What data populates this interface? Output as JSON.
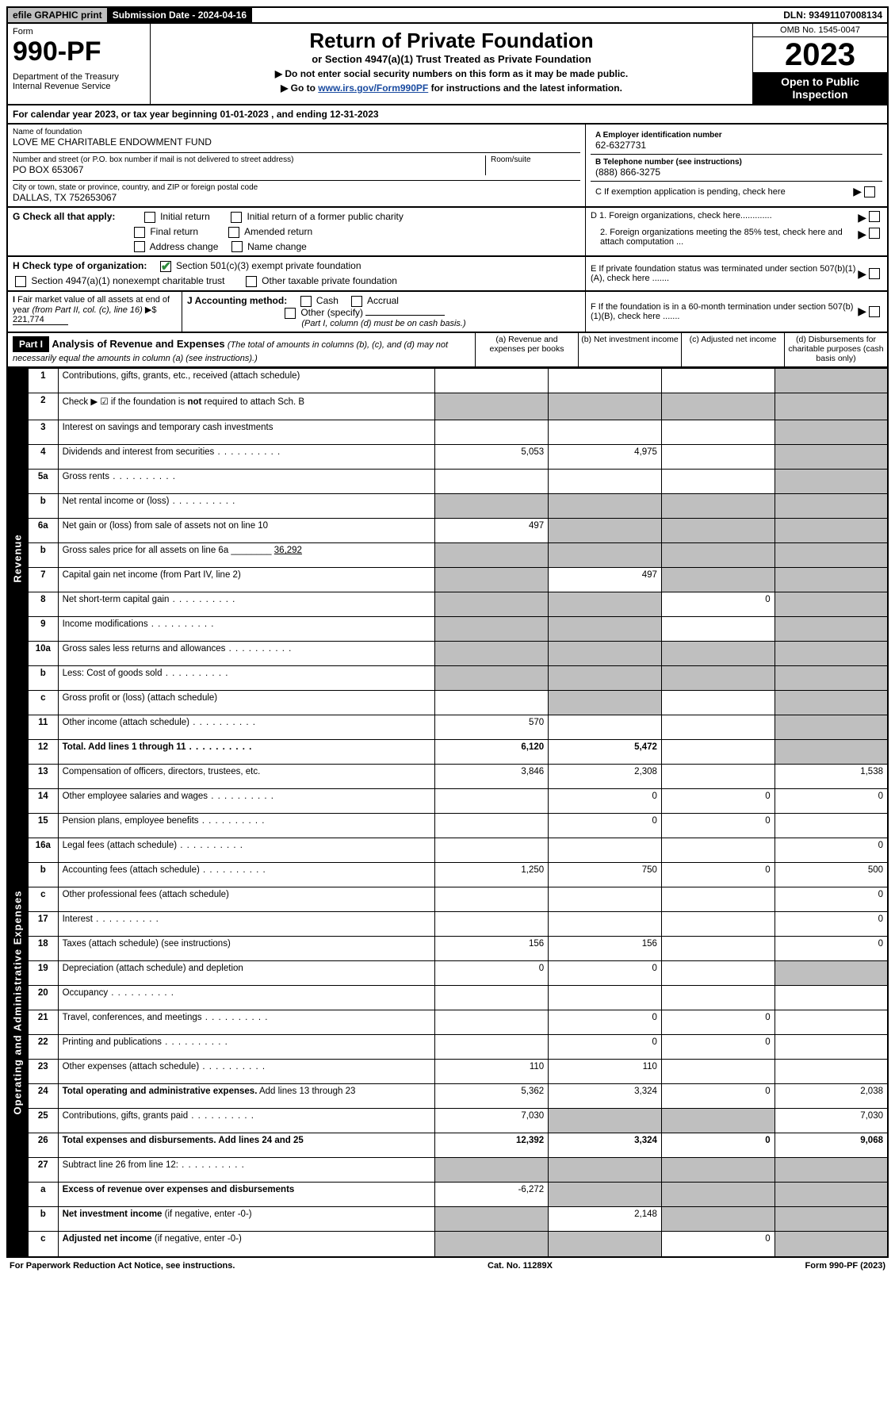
{
  "topbar": {
    "efile": "efile GRAPHIC print",
    "subdate_label": "Submission Date - 2024-04-16",
    "dln": "DLN: 93491107008134"
  },
  "header": {
    "form_word": "Form",
    "form_num": "990-PF",
    "dept": "Department of the Treasury",
    "irs": "Internal Revenue Service",
    "title": "Return of Private Foundation",
    "subtitle": "or Section 4947(a)(1) Trust Treated as Private Foundation",
    "note1": "▶ Do not enter social security numbers on this form as it may be made public.",
    "note2_pre": "▶ Go to ",
    "note2_link": "www.irs.gov/Form990PF",
    "note2_post": " for instructions and the latest information.",
    "omb": "OMB No. 1545-0047",
    "year": "2023",
    "open": "Open to Public Inspection"
  },
  "calyear": "For calendar year 2023, or tax year beginning 01-01-2023         , and ending 12-31-2023",
  "foundation": {
    "name_lbl": "Name of foundation",
    "name": "LOVE ME CHARITABLE ENDOWMENT FUND",
    "addr_lbl": "Number and street (or P.O. box number if mail is not delivered to street address)",
    "addr": "PO BOX 653067",
    "room_lbl": "Room/suite",
    "city_lbl": "City or town, state or province, country, and ZIP or foreign postal code",
    "city": "DALLAS, TX  752653067",
    "ein_lbl": "A Employer identification number",
    "ein": "62-6327731",
    "phone_lbl": "B Telephone number (see instructions)",
    "phone": "(888) 866-3275",
    "c_lbl": "C If exemption application is pending, check here",
    "d1_lbl": "D 1. Foreign organizations, check here.............",
    "d2_lbl": "2. Foreign organizations meeting the 85% test, check here and attach computation ...",
    "e_lbl": "E  If private foundation status was terminated under section 507(b)(1)(A), check here .......",
    "f_lbl": "F  If the foundation is in a 60-month termination under section 507(b)(1)(B), check here .......",
    "g_lbl": "G Check all that apply:",
    "g_opts": [
      "Initial return",
      "Initial return of a former public charity",
      "Final return",
      "Amended return",
      "Address change",
      "Name change"
    ],
    "h_lbl": "H Check type of organization:",
    "h_opts": [
      "Section 501(c)(3) exempt private foundation",
      "Section 4947(a)(1) nonexempt charitable trust",
      "Other taxable private foundation"
    ],
    "i_lbl": "I Fair market value of all assets at end of year (from Part II, col. (c), line 16) ▶$",
    "i_val": "221,774",
    "j_lbl": "J Accounting method:",
    "j_opts": [
      "Cash",
      "Accrual",
      "Other (specify)"
    ],
    "j_note": "(Part I, column (d) must be on cash basis.)"
  },
  "part1": {
    "label": "Part I",
    "title": "Analysis of Revenue and Expenses",
    "hint": "(The total of amounts in columns (b), (c), and (d) may not necessarily equal the amounts in column (a) (see instructions).)",
    "cols": {
      "a": "(a)  Revenue and expenses per books",
      "b": "(b)  Net investment income",
      "c": "(c)  Adjusted net income",
      "d": "(d)  Disbursements for charitable purposes (cash basis only)"
    }
  },
  "side": {
    "revenue": "Revenue",
    "expenses": "Operating and Administrative Expenses"
  },
  "rows": [
    {
      "n": "1",
      "d": "Contributions, gifts, grants, etc., received (attach schedule)",
      "a": "",
      "b": "",
      "c": "",
      "dcol": "",
      "ds": true
    },
    {
      "n": "2",
      "d": "Check ▶ ☑ if the foundation is <b>not</b> required to attach Sch. B",
      "a": "",
      "b": "",
      "c": "",
      "dcol": "",
      "ds": true,
      "bs": true,
      "cs": true,
      "as": true
    },
    {
      "n": "3",
      "d": "Interest on savings and temporary cash investments",
      "a": "",
      "b": "",
      "c": "",
      "dcol": "",
      "ds": true
    },
    {
      "n": "4",
      "d": "Dividends and interest from securities",
      "a": "5,053",
      "b": "4,975",
      "c": "",
      "dcol": "",
      "ds": true
    },
    {
      "n": "5a",
      "d": "Gross rents",
      "a": "",
      "b": "",
      "c": "",
      "dcol": "",
      "ds": true
    },
    {
      "n": "b",
      "d": "Net rental income or (loss)",
      "a": "",
      "b": "",
      "c": "",
      "dcol": "",
      "ds": true,
      "bs": true,
      "cs": true,
      "as": true,
      "inline": true
    },
    {
      "n": "6a",
      "d": "Net gain or (loss) from sale of assets not on line 10",
      "a": "497",
      "b": "",
      "c": "",
      "dcol": "",
      "ds": true,
      "bs": true,
      "cs": true
    },
    {
      "n": "b",
      "d": "Gross sales price for all assets on line 6a ________ <u>36,292</u>",
      "a": "",
      "b": "",
      "c": "",
      "dcol": "",
      "ds": true,
      "bs": true,
      "cs": true,
      "as": true
    },
    {
      "n": "7",
      "d": "Capital gain net income (from Part IV, line 2)",
      "a": "",
      "b": "497",
      "c": "",
      "dcol": "",
      "ds": true,
      "as": true,
      "cs": true
    },
    {
      "n": "8",
      "d": "Net short-term capital gain",
      "a": "",
      "b": "",
      "c": "0",
      "dcol": "",
      "ds": true,
      "as": true,
      "bs": true
    },
    {
      "n": "9",
      "d": "Income modifications",
      "a": "",
      "b": "",
      "c": "",
      "dcol": "",
      "ds": true,
      "as": true,
      "bs": true
    },
    {
      "n": "10a",
      "d": "Gross sales less returns and allowances",
      "a": "",
      "b": "",
      "c": "",
      "dcol": "",
      "ds": true,
      "bs": true,
      "cs": true,
      "as": true,
      "inline": true
    },
    {
      "n": "b",
      "d": "Less: Cost of goods sold",
      "a": "",
      "b": "",
      "c": "",
      "dcol": "",
      "ds": true,
      "bs": true,
      "cs": true,
      "as": true,
      "inline": true
    },
    {
      "n": "c",
      "d": "Gross profit or (loss) (attach schedule)",
      "a": "",
      "b": "",
      "c": "",
      "dcol": "",
      "ds": true,
      "bs": true
    },
    {
      "n": "11",
      "d": "Other income (attach schedule)",
      "a": "570",
      "b": "",
      "c": "",
      "dcol": "",
      "ds": true
    },
    {
      "n": "12",
      "d": "<b>Total.</b> Add lines 1 through 11",
      "a": "6,120",
      "b": "5,472",
      "c": "",
      "dcol": "",
      "ds": true,
      "bold": true
    },
    {
      "n": "13",
      "d": "Compensation of officers, directors, trustees, etc.",
      "a": "3,846",
      "b": "2,308",
      "c": "",
      "dcol": "1,538"
    },
    {
      "n": "14",
      "d": "Other employee salaries and wages",
      "a": "",
      "b": "0",
      "c": "0",
      "dcol": "0"
    },
    {
      "n": "15",
      "d": "Pension plans, employee benefits",
      "a": "",
      "b": "0",
      "c": "0",
      "dcol": ""
    },
    {
      "n": "16a",
      "d": "Legal fees (attach schedule)",
      "a": "",
      "b": "",
      "c": "",
      "dcol": "0"
    },
    {
      "n": "b",
      "d": "Accounting fees (attach schedule)",
      "a": "1,250",
      "b": "750",
      "c": "0",
      "dcol": "500"
    },
    {
      "n": "c",
      "d": "Other professional fees (attach schedule)",
      "a": "",
      "b": "",
      "c": "",
      "dcol": "0"
    },
    {
      "n": "17",
      "d": "Interest",
      "a": "",
      "b": "",
      "c": "",
      "dcol": "0"
    },
    {
      "n": "18",
      "d": "Taxes (attach schedule) (see instructions)",
      "a": "156",
      "b": "156",
      "c": "",
      "dcol": "0"
    },
    {
      "n": "19",
      "d": "Depreciation (attach schedule) and depletion",
      "a": "0",
      "b": "0",
      "c": "",
      "dcol": "",
      "ds": true
    },
    {
      "n": "20",
      "d": "Occupancy",
      "a": "",
      "b": "",
      "c": "",
      "dcol": ""
    },
    {
      "n": "21",
      "d": "Travel, conferences, and meetings",
      "a": "",
      "b": "0",
      "c": "0",
      "dcol": ""
    },
    {
      "n": "22",
      "d": "Printing and publications",
      "a": "",
      "b": "0",
      "c": "0",
      "dcol": ""
    },
    {
      "n": "23",
      "d": "Other expenses (attach schedule)",
      "a": "110",
      "b": "110",
      "c": "",
      "dcol": ""
    },
    {
      "n": "24",
      "d": "<b>Total operating and administrative expenses.</b> Add lines 13 through 23",
      "a": "5,362",
      "b": "3,324",
      "c": "0",
      "dcol": "2,038"
    },
    {
      "n": "25",
      "d": "Contributions, gifts, grants paid",
      "a": "7,030",
      "b": "",
      "c": "",
      "dcol": "7,030",
      "bs": true,
      "cs": true
    },
    {
      "n": "26",
      "d": "<b>Total expenses and disbursements.</b> Add lines 24 and 25",
      "a": "12,392",
      "b": "3,324",
      "c": "0",
      "dcol": "9,068",
      "bold": true
    },
    {
      "n": "27",
      "d": "Subtract line 26 from line 12:",
      "a": "",
      "b": "",
      "c": "",
      "dcol": "",
      "as": true,
      "bs": true,
      "cs": true,
      "ds": true
    },
    {
      "n": "a",
      "d": "<b>Excess of revenue over expenses and disbursements</b>",
      "a": "-6,272",
      "b": "",
      "c": "",
      "dcol": "",
      "bs": true,
      "cs": true,
      "ds": true
    },
    {
      "n": "b",
      "d": "<b>Net investment income</b> (if negative, enter -0-)",
      "a": "",
      "b": "2,148",
      "c": "",
      "dcol": "",
      "as": true,
      "cs": true,
      "ds": true
    },
    {
      "n": "c",
      "d": "<b>Adjusted net income</b> (if negative, enter -0-)",
      "a": "",
      "b": "",
      "c": "0",
      "dcol": "",
      "as": true,
      "bs": true,
      "ds": true
    }
  ],
  "footer": {
    "left": "For Paperwork Reduction Act Notice, see instructions.",
    "mid": "Cat. No. 11289X",
    "right": "Form 990-PF (2023)"
  }
}
